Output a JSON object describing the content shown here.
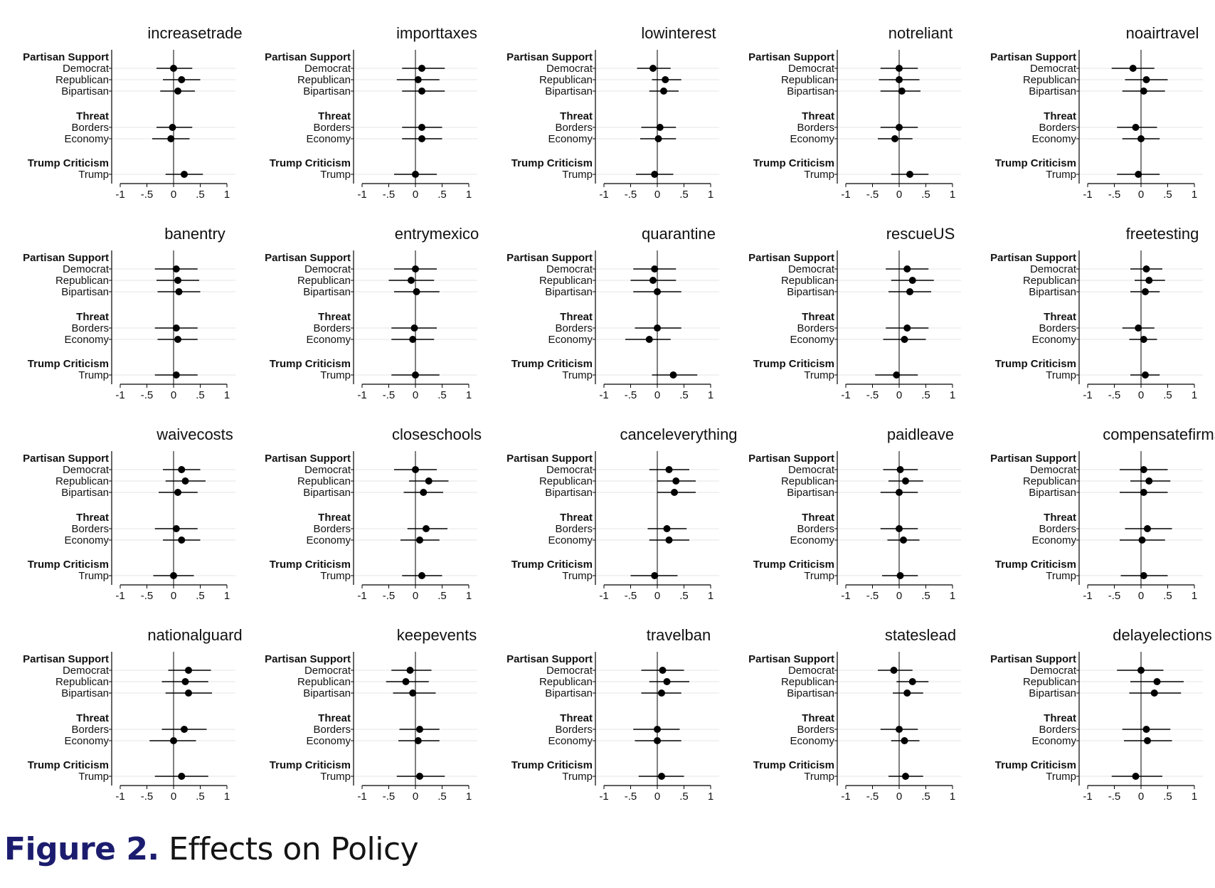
{
  "figure": {
    "label": "Figure 2.",
    "title": "Effects on Policy"
  },
  "colors": {
    "point": "#000000",
    "line": "#000000",
    "grid": "#e6e6e6",
    "axis": "#000000",
    "text": "#111111"
  },
  "chart_data": {
    "type": "scatter",
    "subtype": "coefficient-plot",
    "group_headers": [
      "Partisan Support",
      "Threat",
      "Trump Criticism"
    ],
    "rows": [
      {
        "group": "Partisan Support",
        "label": "Democrat"
      },
      {
        "group": "Partisan Support",
        "label": "Republican"
      },
      {
        "group": "Partisan Support",
        "label": "Bipartisan"
      },
      {
        "group": "Threat",
        "label": "Borders"
      },
      {
        "group": "Threat",
        "label": "Economy"
      },
      {
        "group": "Trump Criticism",
        "label": "Trump"
      }
    ],
    "xticks": [
      "-1",
      "-.5",
      "0",
      ".5",
      "1"
    ],
    "xtick_values": [
      -1,
      -0.5,
      0,
      0.5,
      1
    ],
    "grid": true,
    "panels": [
      {
        "title": "increasetrade",
        "xlim": [
          -1,
          1
        ],
        "est": [
          0.0,
          0.15,
          0.08,
          -0.02,
          -0.05,
          0.2
        ],
        "lo": [
          -0.32,
          -0.2,
          -0.25,
          -0.32,
          -0.4,
          -0.15
        ],
        "hi": [
          0.35,
          0.5,
          0.4,
          0.35,
          0.3,
          0.55
        ]
      },
      {
        "title": "importtaxes",
        "xlim": [
          -1,
          1
        ],
        "est": [
          0.12,
          0.05,
          0.12,
          0.12,
          0.12,
          0.0
        ],
        "lo": [
          -0.25,
          -0.35,
          -0.25,
          -0.25,
          -0.25,
          -0.4
        ],
        "hi": [
          0.55,
          0.45,
          0.55,
          0.5,
          0.5,
          0.4
        ]
      },
      {
        "title": "lowinterest",
        "xlim": [
          -1,
          1
        ],
        "est": [
          -0.08,
          0.15,
          0.12,
          0.05,
          0.02,
          -0.05
        ],
        "lo": [
          -0.38,
          -0.1,
          -0.15,
          -0.3,
          -0.32,
          -0.4
        ],
        "hi": [
          0.25,
          0.45,
          0.4,
          0.35,
          0.35,
          0.3
        ]
      },
      {
        "title": "notreliant",
        "xlim": [
          -1,
          1
        ],
        "est": [
          0.0,
          0.0,
          0.05,
          0.0,
          -0.08,
          0.2
        ],
        "lo": [
          -0.35,
          -0.38,
          -0.35,
          -0.35,
          -0.4,
          -0.15
        ],
        "hi": [
          0.35,
          0.38,
          0.4,
          0.35,
          0.25,
          0.55
        ]
      },
      {
        "title": "noairtravel",
        "xlim": [
          -1,
          1
        ],
        "est": [
          -0.15,
          0.1,
          0.05,
          -0.1,
          0.0,
          -0.05
        ],
        "lo": [
          -0.55,
          -0.3,
          -0.35,
          -0.45,
          -0.35,
          -0.45
        ],
        "hi": [
          0.25,
          0.5,
          0.45,
          0.3,
          0.35,
          0.35
        ]
      },
      {
        "title": "banentry",
        "xlim": [
          -1,
          1
        ],
        "est": [
          0.05,
          0.08,
          0.1,
          0.05,
          0.08,
          0.05
        ],
        "lo": [
          -0.35,
          -0.32,
          -0.3,
          -0.35,
          -0.3,
          -0.35
        ],
        "hi": [
          0.45,
          0.48,
          0.5,
          0.45,
          0.45,
          0.45
        ]
      },
      {
        "title": "entrymexico",
        "xlim": [
          -1,
          1
        ],
        "est": [
          0.0,
          -0.08,
          0.02,
          -0.02,
          -0.05,
          0.0
        ],
        "lo": [
          -0.4,
          -0.5,
          -0.4,
          -0.45,
          -0.45,
          -0.45
        ],
        "hi": [
          0.4,
          0.35,
          0.45,
          0.4,
          0.35,
          0.45
        ]
      },
      {
        "title": "quarantine",
        "xlim": [
          -1,
          1
        ],
        "est": [
          -0.05,
          -0.08,
          0.0,
          0.0,
          -0.15,
          0.3
        ],
        "lo": [
          -0.45,
          -0.5,
          -0.45,
          -0.42,
          -0.6,
          -0.1
        ],
        "hi": [
          0.35,
          0.35,
          0.45,
          0.45,
          0.25,
          0.75
        ]
      },
      {
        "title": "rescueUS",
        "xlim": [
          -1,
          1
        ],
        "est": [
          0.15,
          0.25,
          0.2,
          0.15,
          0.1,
          -0.05
        ],
        "lo": [
          -0.25,
          -0.15,
          -0.2,
          -0.25,
          -0.3,
          -0.45
        ],
        "hi": [
          0.55,
          0.65,
          0.6,
          0.55,
          0.5,
          0.35
        ]
      },
      {
        "title": "freetesting",
        "xlim": [
          -1,
          1
        ],
        "est": [
          0.1,
          0.15,
          0.08,
          -0.05,
          0.05,
          0.08
        ],
        "lo": [
          -0.2,
          -0.12,
          -0.2,
          -0.35,
          -0.22,
          -0.2
        ],
        "hi": [
          0.4,
          0.45,
          0.35,
          0.25,
          0.3,
          0.35
        ]
      },
      {
        "title": "waivecosts",
        "xlim": [
          -1,
          1
        ],
        "est": [
          0.15,
          0.22,
          0.08,
          0.05,
          0.15,
          0.0
        ],
        "lo": [
          -0.2,
          -0.15,
          -0.28,
          -0.35,
          -0.2,
          -0.38
        ],
        "hi": [
          0.5,
          0.6,
          0.45,
          0.45,
          0.5,
          0.38
        ]
      },
      {
        "title": "closeschools",
        "xlim": [
          -1,
          1
        ],
        "est": [
          0.0,
          0.25,
          0.15,
          0.2,
          0.08,
          0.12
        ],
        "lo": [
          -0.4,
          -0.12,
          -0.22,
          -0.15,
          -0.28,
          -0.25
        ],
        "hi": [
          0.4,
          0.62,
          0.52,
          0.6,
          0.45,
          0.5
        ]
      },
      {
        "title": "canceleverything",
        "xlim": [
          -1,
          1
        ],
        "est": [
          0.22,
          0.35,
          0.32,
          0.18,
          0.22,
          -0.05
        ],
        "lo": [
          -0.15,
          0.0,
          0.0,
          -0.18,
          -0.15,
          -0.5
        ],
        "hi": [
          0.6,
          0.72,
          0.72,
          0.55,
          0.6,
          0.38
        ]
      },
      {
        "title": "paidleave",
        "xlim": [
          -1,
          1
        ],
        "est": [
          0.02,
          0.12,
          0.0,
          0.0,
          0.08,
          0.02
        ],
        "lo": [
          -0.3,
          -0.2,
          -0.35,
          -0.35,
          -0.22,
          -0.32
        ],
        "hi": [
          0.35,
          0.45,
          0.35,
          0.35,
          0.38,
          0.35
        ]
      },
      {
        "title": "compensatefirms",
        "xlim": [
          -1,
          1
        ],
        "est": [
          0.05,
          0.15,
          0.05,
          0.12,
          0.02,
          0.05
        ],
        "lo": [
          -0.4,
          -0.2,
          -0.4,
          -0.3,
          -0.4,
          -0.38
        ],
        "hi": [
          0.5,
          0.55,
          0.5,
          0.58,
          0.45,
          0.5
        ]
      },
      {
        "title": "nationalguard",
        "xlim": [
          -1,
          1
        ],
        "est": [
          0.28,
          0.22,
          0.28,
          0.2,
          0.0,
          0.15
        ],
        "lo": [
          -0.1,
          -0.22,
          -0.15,
          -0.22,
          -0.45,
          -0.35
        ],
        "hi": [
          0.7,
          0.65,
          0.72,
          0.62,
          0.42,
          0.65
        ]
      },
      {
        "title": "keepevents",
        "xlim": [
          -1,
          1
        ],
        "est": [
          -0.1,
          -0.18,
          -0.05,
          0.08,
          0.05,
          0.08
        ],
        "lo": [
          -0.45,
          -0.55,
          -0.42,
          -0.3,
          -0.32,
          -0.35
        ],
        "hi": [
          0.3,
          0.25,
          0.38,
          0.45,
          0.45,
          0.55
        ]
      },
      {
        "title": "travelban",
        "xlim": [
          -1,
          1
        ],
        "est": [
          0.1,
          0.18,
          0.08,
          0.0,
          0.0,
          0.08
        ],
        "lo": [
          -0.3,
          -0.15,
          -0.3,
          -0.45,
          -0.42,
          -0.35
        ],
        "hi": [
          0.5,
          0.6,
          0.45,
          0.42,
          0.45,
          0.5
        ]
      },
      {
        "title": "stateslead",
        "xlim": [
          -1,
          1
        ],
        "est": [
          -0.1,
          0.25,
          0.15,
          0.0,
          0.1,
          0.12
        ],
        "lo": [
          -0.4,
          -0.05,
          -0.12,
          -0.35,
          -0.15,
          -0.2
        ],
        "hi": [
          0.25,
          0.55,
          0.45,
          0.35,
          0.38,
          0.45
        ]
      },
      {
        "title": "delayelections",
        "xlim": [
          -1,
          1
        ],
        "est": [
          0.0,
          0.3,
          0.25,
          0.1,
          0.12,
          -0.1
        ],
        "lo": [
          -0.45,
          -0.2,
          -0.22,
          -0.35,
          -0.32,
          -0.55
        ],
        "hi": [
          0.42,
          0.8,
          0.75,
          0.55,
          0.58,
          0.4
        ]
      }
    ]
  }
}
